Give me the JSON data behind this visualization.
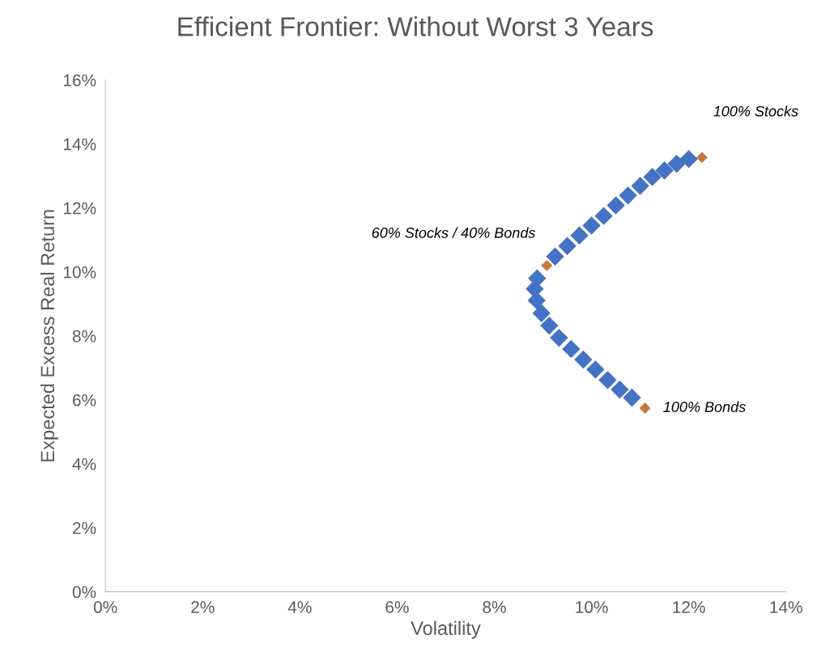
{
  "chart_data": {
    "type": "scatter",
    "title": "Efficient Frontier: Without Worst 3 Years",
    "xlabel": "Volatility",
    "ylabel": "Expected Excess Real Return",
    "marker": "diamond",
    "grid": false,
    "legend": false,
    "xlim": [
      0,
      14
    ],
    "ylim": [
      0,
      16
    ],
    "xticks": [
      {
        "value": 0,
        "label": "0%"
      },
      {
        "value": 2,
        "label": "2%"
      },
      {
        "value": 4,
        "label": "4%"
      },
      {
        "value": 6,
        "label": "6%"
      },
      {
        "value": 8,
        "label": "8%"
      },
      {
        "value": 10,
        "label": "10%"
      },
      {
        "value": 12,
        "label": "12%"
      },
      {
        "value": 14,
        "label": "14%"
      }
    ],
    "yticks": [
      {
        "value": 0,
        "label": "0%"
      },
      {
        "value": 2,
        "label": "2%"
      },
      {
        "value": 4,
        "label": "4%"
      },
      {
        "value": 6,
        "label": "6%"
      },
      {
        "value": 8,
        "label": "8%"
      },
      {
        "value": 10,
        "label": "10%"
      },
      {
        "value": 12,
        "label": "12%"
      },
      {
        "value": 14,
        "label": "14%"
      },
      {
        "value": 16,
        "label": "16%"
      }
    ],
    "series": [
      {
        "color": "#4472c4",
        "x": [
          10.83,
          10.58,
          10.33,
          10.08,
          9.83,
          9.58,
          9.33,
          9.13,
          8.97,
          8.87,
          8.83,
          8.88,
          9.25,
          9.5,
          9.75,
          10.0,
          10.25,
          10.5,
          10.75,
          11.0,
          11.25,
          11.5,
          11.75,
          12.0
        ],
        "values": [
          6.07,
          6.32,
          6.62,
          6.95,
          7.26,
          7.59,
          7.94,
          8.32,
          8.71,
          9.11,
          9.47,
          9.8,
          10.48,
          10.81,
          11.14,
          11.45,
          11.75,
          12.08,
          12.39,
          12.69,
          12.97,
          13.17,
          13.38,
          13.53
        ]
      },
      {
        "color": "#c87941",
        "x": [
          11.1,
          9.08,
          12.27
        ],
        "values": [
          5.74,
          10.2,
          13.58
        ]
      }
    ],
    "annotations": [
      {
        "text": "100% Bonds",
        "x": 11.1,
        "y": 5.74
      },
      {
        "text": "60% Stocks / 40% Bonds",
        "x": 9.08,
        "y": 10.2
      },
      {
        "text": "100% Stocks",
        "x": 12.27,
        "y": 13.58
      }
    ]
  }
}
